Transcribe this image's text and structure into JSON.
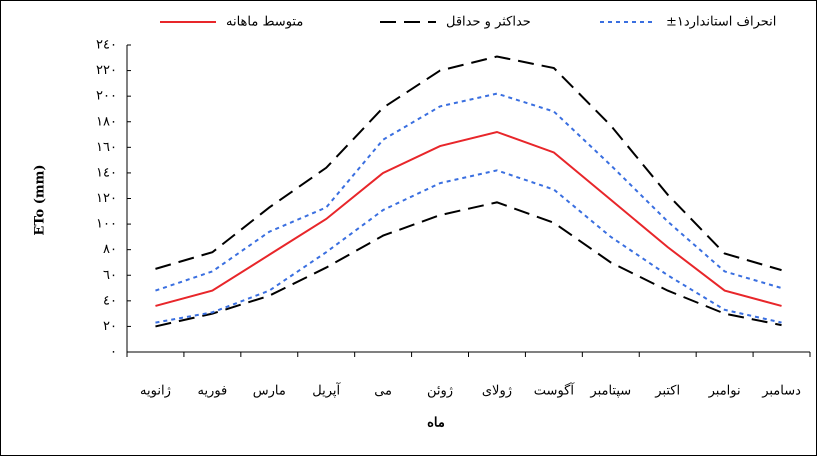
{
  "chart_data": {
    "type": "line",
    "y_label": "ETo (mm)",
    "x_label": "ماه",
    "categories": [
      "ژانویه",
      "فوریه",
      "مارس",
      "آپریل",
      "می",
      "ژوئن",
      "ژولای",
      "آگوست",
      "سپتامبر",
      "اکتبر",
      "نوامبر",
      "دسامبر"
    ],
    "series": [
      {
        "name": "متوسط ماهانه",
        "color": "#e8262a",
        "dash": "solid",
        "values": [
          36,
          48,
          76,
          104,
          140,
          161,
          172,
          156,
          119,
          82,
          48,
          36
        ]
      },
      {
        "name": "حداکثر و حداقل",
        "color": "#000000",
        "dash": "dashed",
        "values": [
          65,
          78,
          113,
          144,
          191,
          220,
          231,
          222,
          177,
          123,
          77,
          64
        ]
      },
      {
        "name": "حداکثر و حداقل",
        "color": "#000000",
        "dash": "dashed",
        "values": [
          20,
          30,
          44,
          66,
          91,
          107,
          117,
          101,
          70,
          48,
          30,
          21
        ]
      },
      {
        "name": "±۱انحراف استاندارد",
        "color": "#3a6fe0",
        "dash": "dotted",
        "values": [
          48,
          63,
          94,
          113,
          166,
          192,
          202,
          188,
          146,
          102,
          63,
          50
        ]
      },
      {
        "name": "±۱انحراف استاندارد",
        "color": "#3a6fe0",
        "dash": "dotted",
        "values": [
          23,
          31,
          48,
          78,
          111,
          132,
          142,
          127,
          90,
          60,
          33,
          23
        ]
      }
    ],
    "ylim": [
      0,
      240
    ],
    "yticks": [
      {
        "value": 0,
        "label": "٠"
      },
      {
        "value": 20,
        "label": "٢٠"
      },
      {
        "value": 40,
        "label": "٤٠"
      },
      {
        "value": 60,
        "label": "٦٠"
      },
      {
        "value": 80,
        "label": "٨٠"
      },
      {
        "value": 100,
        "label": "١٠٠"
      },
      {
        "value": 120,
        "label": "١٢٠"
      },
      {
        "value": 140,
        "label": "١٤٠"
      },
      {
        "value": 160,
        "label": "١٦٠"
      },
      {
        "value": 180,
        "label": "١٨٠"
      },
      {
        "value": 200,
        "label": "٢٠٠"
      },
      {
        "value": 220,
        "label": "٢٢٠"
      },
      {
        "value": 240,
        "label": "٢٤٠"
      }
    ],
    "grid": false,
    "legend": "top"
  }
}
